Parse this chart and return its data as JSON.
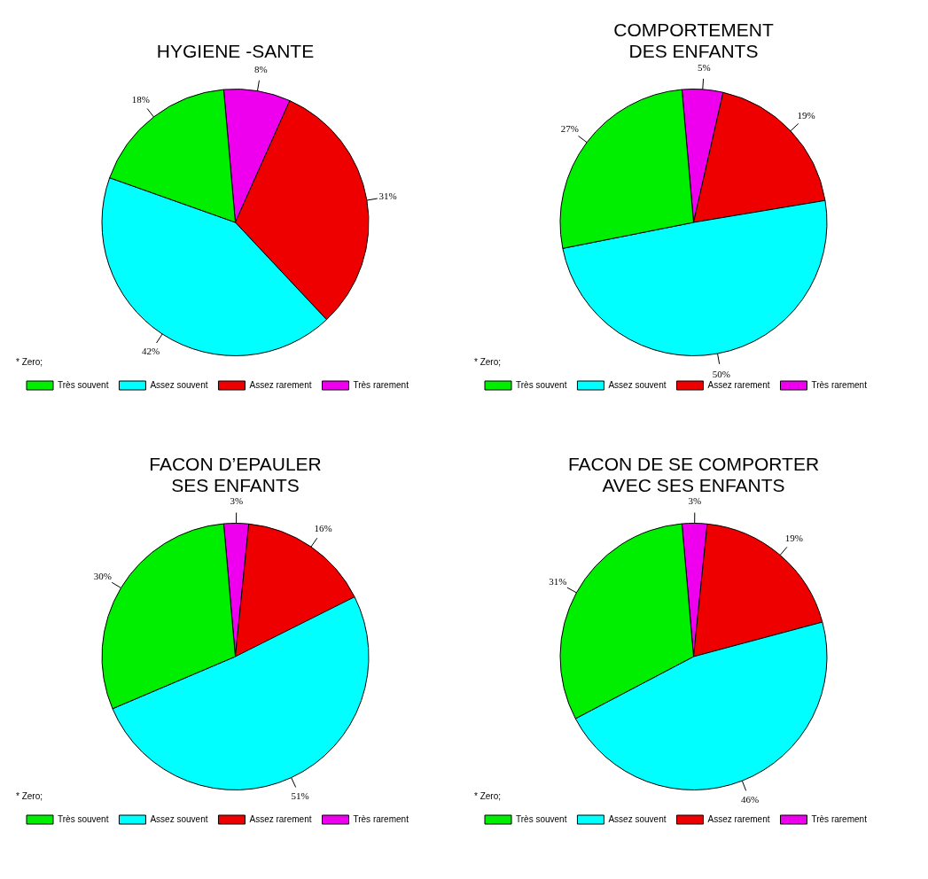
{
  "chart_data": [
    {
      "type": "pie",
      "title": "HYGIENE -SANTE",
      "categories": [
        "Très souvent",
        "Assez souvent",
        "Assez rarement",
        "Très rarement"
      ],
      "values": [
        18,
        42,
        31,
        8
      ],
      "value_labels": [
        "18%",
        "42%",
        "31%",
        "8%"
      ],
      "colors": [
        "#00ee00",
        "#00ffff",
        "#ee0000",
        "#ee00ee"
      ],
      "legend": "bottom",
      "legend_title": "* Zero;"
    },
    {
      "type": "pie",
      "title": "COMPORTEMENT\nDES ENFANTS",
      "categories": [
        "Très souvent",
        "Assez souvent",
        "Assez rarement",
        "Très rarement"
      ],
      "values": [
        27,
        50,
        19,
        5
      ],
      "value_labels": [
        "27%",
        "50%",
        "19%",
        "5%"
      ],
      "colors": [
        "#00ee00",
        "#00ffff",
        "#ee0000",
        "#ee00ee"
      ],
      "legend": "bottom",
      "legend_title": "* Zero;"
    },
    {
      "type": "pie",
      "title": "FACON D’EPAULER\nSES ENFANTS",
      "categories": [
        "Très souvent",
        "Assez souvent",
        "Assez rarement",
        "Très rarement"
      ],
      "values": [
        30,
        51,
        16,
        3
      ],
      "value_labels": [
        "30%",
        "51%",
        "16%",
        "3%"
      ],
      "colors": [
        "#00ee00",
        "#00ffff",
        "#ee0000",
        "#ee00ee"
      ],
      "legend": "bottom",
      "legend_title": "* Zero;"
    },
    {
      "type": "pie",
      "title": "FACON DE SE COMPORTER\nAVEC SES ENFANTS",
      "categories": [
        "Très souvent",
        "Assez souvent",
        "Assez rarement",
        "Très rarement"
      ],
      "values": [
        31,
        46,
        19,
        3
      ],
      "value_labels": [
        "31%",
        "46%",
        "19%",
        "3%"
      ],
      "colors": [
        "#00ee00",
        "#00ffff",
        "#ee0000",
        "#ee00ee"
      ],
      "legend": "bottom",
      "legend_title": "* Zero;"
    }
  ]
}
